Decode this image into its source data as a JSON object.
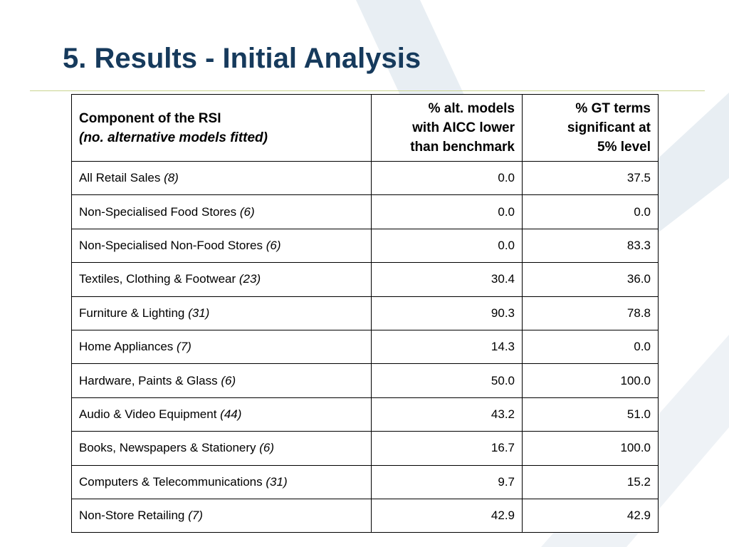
{
  "title": "5. Results - Initial Analysis",
  "colors": {
    "title": "#163a5c",
    "rule": "#c9d48f",
    "background_decoration": "#e8eef3"
  },
  "table": {
    "headers": {
      "component": "Component of the RSI",
      "component_sub": "(no. alternative models fitted)",
      "aicc_line1": "% alt. models",
      "aicc_line2": "with AICC lower",
      "aicc_line3": "than benchmark",
      "gt_line1": "% GT terms",
      "gt_line2": "significant at",
      "gt_line3": "5% level"
    },
    "rows": [
      {
        "component": "All Retail Sales",
        "count": "(8)",
        "aicc": "0.0",
        "gt": "37.5"
      },
      {
        "component": "Non-Specialised Food Stores",
        "count": "(6)",
        "aicc": "0.0",
        "gt": "0.0"
      },
      {
        "component": "Non-Specialised Non-Food Stores",
        "count": "(6)",
        "aicc": "0.0",
        "gt": "83.3"
      },
      {
        "component": "Textiles, Clothing & Footwear",
        "count": "(23)",
        "aicc": "30.4",
        "gt": "36.0"
      },
      {
        "component": "Furniture & Lighting",
        "count": "(31)",
        "aicc": "90.3",
        "gt": "78.8"
      },
      {
        "component": "Home Appliances",
        "count": "(7)",
        "aicc": "14.3",
        "gt": "0.0"
      },
      {
        "component": "Hardware, Paints & Glass",
        "count": "(6)",
        "aicc": "50.0",
        "gt": "100.0"
      },
      {
        "component": "Audio & Video Equipment",
        "count": "(44)",
        "aicc": "43.2",
        "gt": "51.0"
      },
      {
        "component": "Books, Newspapers & Stationery",
        "count": "(6)",
        "aicc": "16.7",
        "gt": "100.0"
      },
      {
        "component": "Computers & Telecommunications",
        "count": "(31)",
        "aicc": "9.7",
        "gt": "15.2"
      },
      {
        "component": "Non-Store Retailing",
        "count": "(7)",
        "aicc": "42.9",
        "gt": "42.9"
      }
    ]
  }
}
